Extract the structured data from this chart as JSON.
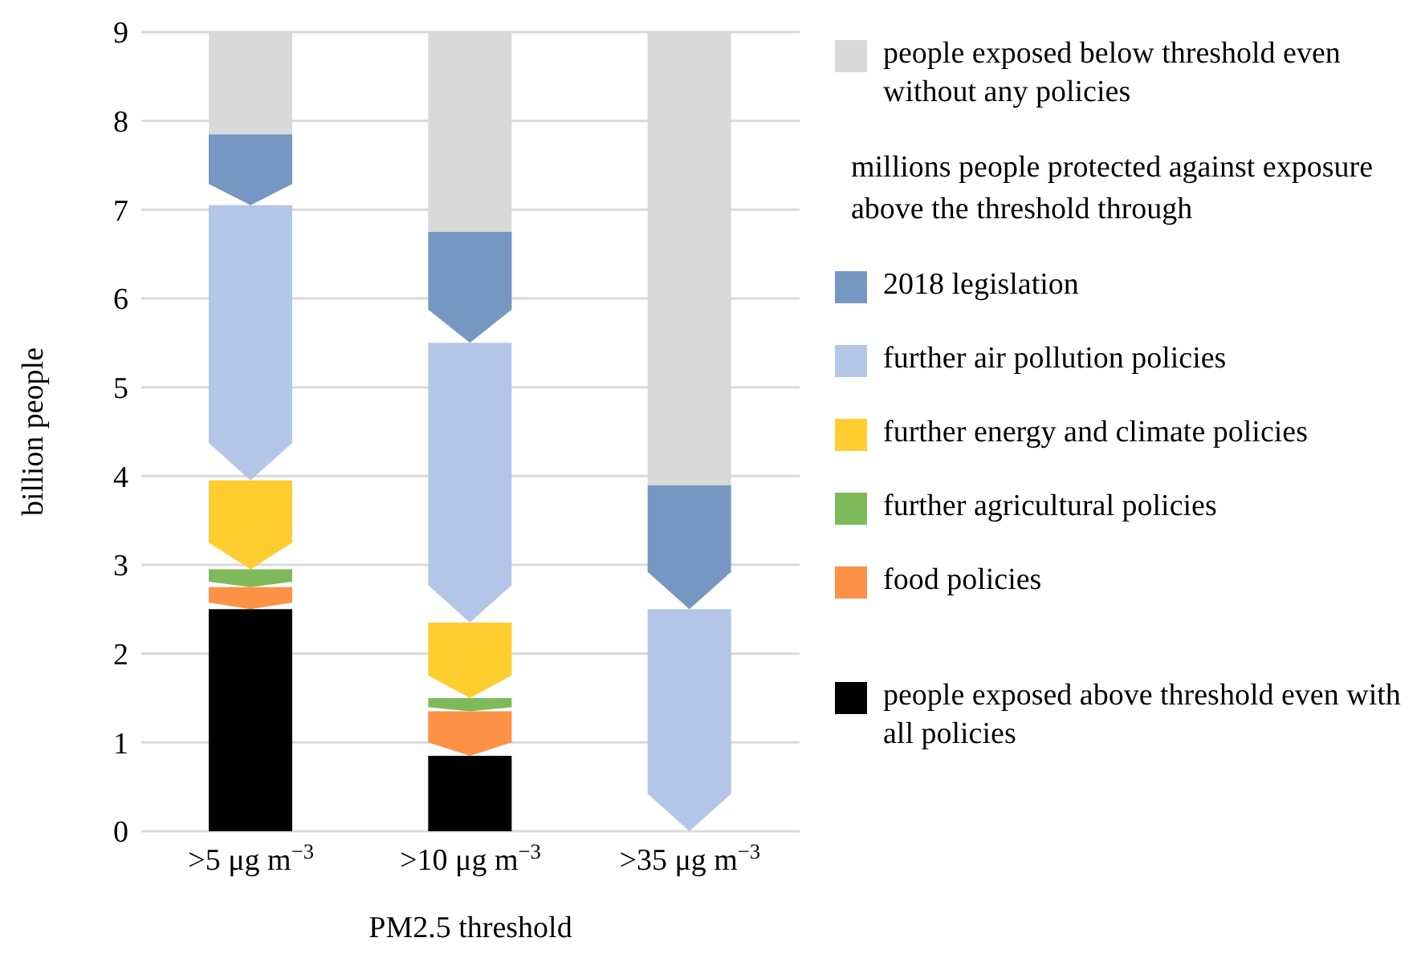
{
  "chart_data": {
    "type": "bar",
    "stacked": true,
    "categories": [
      ">5 μg m$^{−3}$",
      ">10 μg m$^{−3}$",
      ">35 μg m$^{−3}$"
    ],
    "xlabel": "PM2.5 threshold",
    "ylabel": "billion people",
    "legend_title": "millions people protected against exposure above the threshold through",
    "ylim": [
      0,
      9
    ],
    "yticks": [
      0,
      1,
      2,
      3,
      4,
      5,
      6,
      7,
      8,
      9
    ],
    "grid": "y",
    "legend": "right",
    "series": [
      {
        "name": "people exposed above threshold even with all policies",
        "color": "#000000",
        "values": [
          2.5,
          0.85,
          0
        ]
      },
      {
        "name": "food policies",
        "color": "#fd9246",
        "values": [
          0.25,
          0.5,
          0
        ]
      },
      {
        "name": "further agricultural policies",
        "color": "#7fba5a",
        "values": [
          0.2,
          0.15,
          0
        ]
      },
      {
        "name": "further energy and climate policies",
        "color": "#fecd2f",
        "values": [
          1.0,
          0.85,
          0
        ]
      },
      {
        "name": "further air pollution policies",
        "color": "#b4c6e7",
        "values": [
          3.1,
          3.15,
          2.5
        ]
      },
      {
        "name": "2018 legislation",
        "color": "#7697c1",
        "values": [
          0.8,
          1.25,
          1.4
        ]
      },
      {
        "name": "people exposed below threshold even without any policies",
        "color": "#d9d9d9",
        "values": [
          1.15,
          2.25,
          5.1
        ]
      }
    ]
  }
}
